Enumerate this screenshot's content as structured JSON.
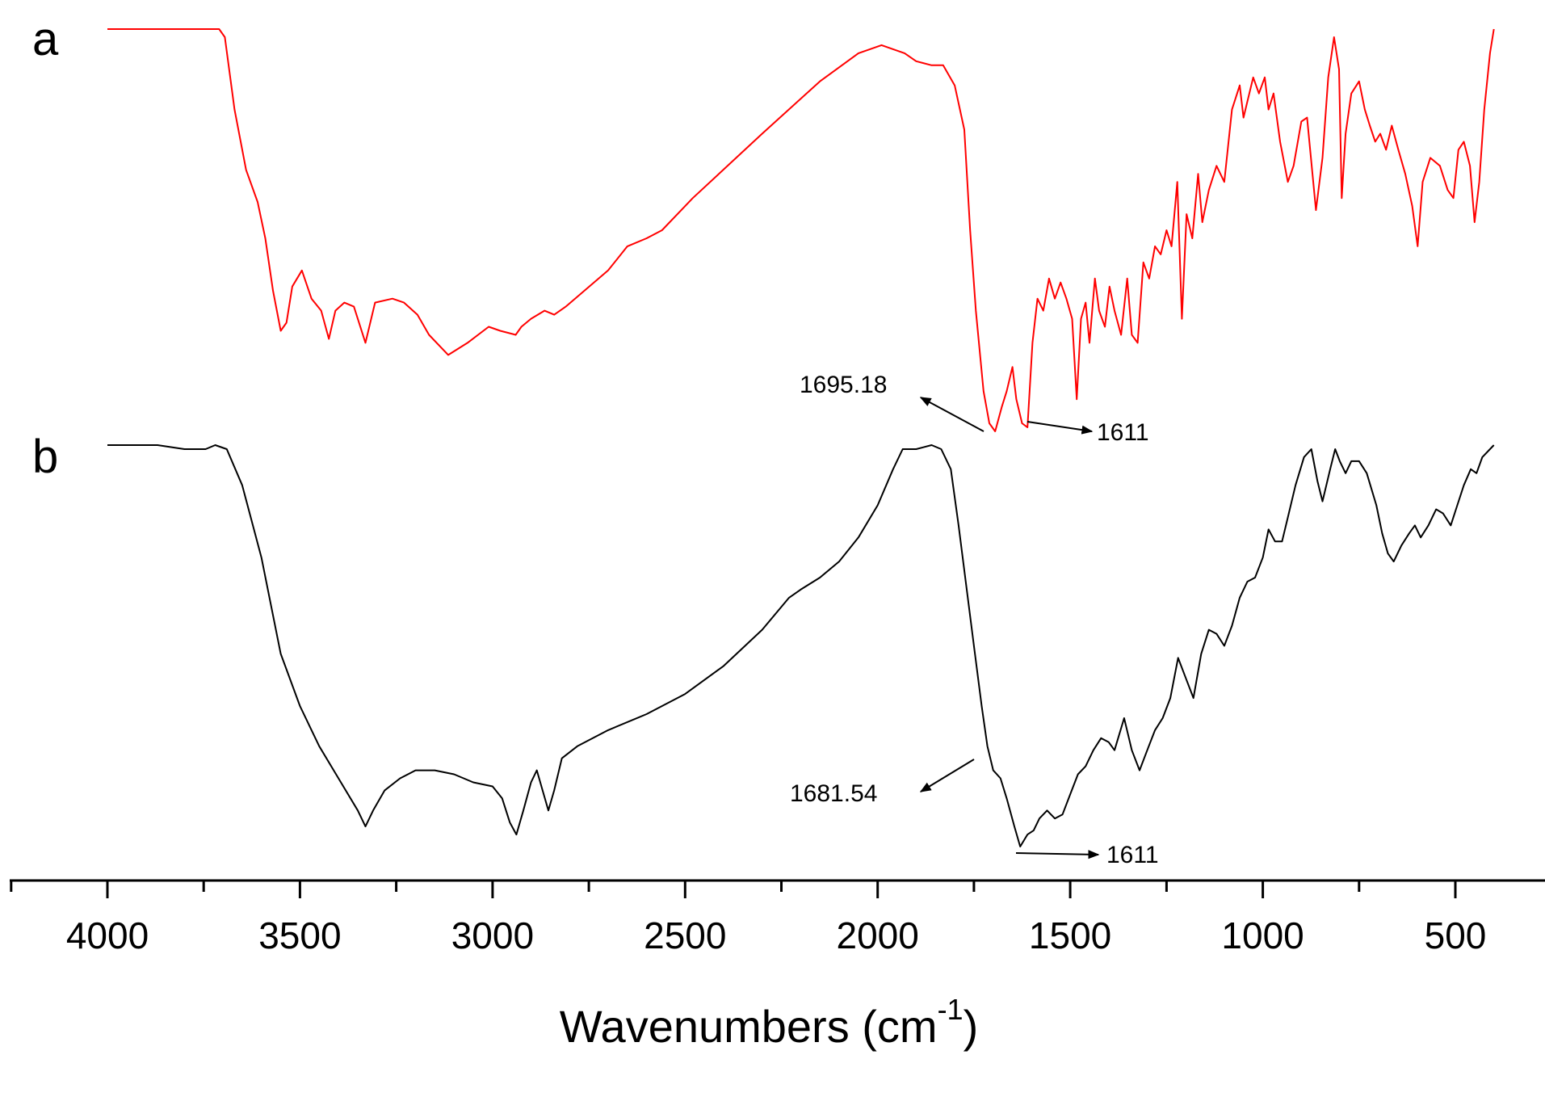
{
  "chart_data": {
    "type": "line",
    "xlabel": "Wavenumbers (cm",
    "xlabel_superscript": "-1",
    "xlabel_suffix": ")",
    "x_reversed": true,
    "xlim": [
      4250,
      250
    ],
    "ylim": [
      0,
      1
    ],
    "x_ticks": [
      4000,
      3500,
      3000,
      2500,
      2000,
      1500,
      1000,
      500
    ],
    "x_tick_labels": [
      "4000",
      "3500",
      "3000",
      "2500",
      "2000",
      "1500",
      "1000",
      "500"
    ],
    "grid": false,
    "series": [
      {
        "name": "a",
        "color": "#ff0000",
        "points": [
          [
            4000,
            1.0
          ],
          [
            3760,
            1.0
          ],
          [
            3710,
            1.0
          ],
          [
            3695,
            0.98
          ],
          [
            3670,
            0.8
          ],
          [
            3640,
            0.65
          ],
          [
            3610,
            0.57
          ],
          [
            3590,
            0.48
          ],
          [
            3570,
            0.35
          ],
          [
            3550,
            0.25
          ],
          [
            3535,
            0.27
          ],
          [
            3520,
            0.36
          ],
          [
            3495,
            0.4
          ],
          [
            3470,
            0.33
          ],
          [
            3445,
            0.3
          ],
          [
            3425,
            0.23
          ],
          [
            3408,
            0.3
          ],
          [
            3385,
            0.32
          ],
          [
            3360,
            0.31
          ],
          [
            3330,
            0.22
          ],
          [
            3305,
            0.32
          ],
          [
            3260,
            0.33
          ],
          [
            3230,
            0.32
          ],
          [
            3195,
            0.29
          ],
          [
            3165,
            0.24
          ],
          [
            3115,
            0.19
          ],
          [
            3065,
            0.22
          ],
          [
            3010,
            0.26
          ],
          [
            2980,
            0.25
          ],
          [
            2940,
            0.24
          ],
          [
            2925,
            0.26
          ],
          [
            2900,
            0.28
          ],
          [
            2865,
            0.3
          ],
          [
            2840,
            0.29
          ],
          [
            2810,
            0.31
          ],
          [
            2700,
            0.4
          ],
          [
            2650,
            0.46
          ],
          [
            2600,
            0.48
          ],
          [
            2560,
            0.5
          ],
          [
            2480,
            0.58
          ],
          [
            2300,
            0.74
          ],
          [
            2150,
            0.87
          ],
          [
            2050,
            0.94
          ],
          [
            1990,
            0.96
          ],
          [
            1930,
            0.94
          ],
          [
            1900,
            0.92
          ],
          [
            1860,
            0.91
          ],
          [
            1830,
            0.91
          ],
          [
            1800,
            0.86
          ],
          [
            1775,
            0.75
          ],
          [
            1760,
            0.5
          ],
          [
            1745,
            0.3
          ],
          [
            1725,
            0.1
          ],
          [
            1710,
            0.02
          ],
          [
            1695,
            0.0
          ],
          [
            1678,
            0.06
          ],
          [
            1665,
            0.1
          ],
          [
            1650,
            0.16
          ],
          [
            1640,
            0.08
          ],
          [
            1625,
            0.02
          ],
          [
            1611,
            0.01
          ],
          [
            1598,
            0.22
          ],
          [
            1585,
            0.33
          ],
          [
            1570,
            0.3
          ],
          [
            1555,
            0.38
          ],
          [
            1540,
            0.33
          ],
          [
            1525,
            0.37
          ],
          [
            1510,
            0.33
          ],
          [
            1495,
            0.28
          ],
          [
            1483,
            0.08
          ],
          [
            1472,
            0.28
          ],
          [
            1460,
            0.32
          ],
          [
            1450,
            0.22
          ],
          [
            1436,
            0.38
          ],
          [
            1425,
            0.3
          ],
          [
            1410,
            0.26
          ],
          [
            1398,
            0.36
          ],
          [
            1385,
            0.3
          ],
          [
            1368,
            0.24
          ],
          [
            1352,
            0.38
          ],
          [
            1340,
            0.24
          ],
          [
            1325,
            0.22
          ],
          [
            1310,
            0.42
          ],
          [
            1295,
            0.38
          ],
          [
            1280,
            0.46
          ],
          [
            1265,
            0.44
          ],
          [
            1250,
            0.5
          ],
          [
            1237,
            0.46
          ],
          [
            1222,
            0.62
          ],
          [
            1210,
            0.28
          ],
          [
            1198,
            0.54
          ],
          [
            1183,
            0.48
          ],
          [
            1168,
            0.64
          ],
          [
            1157,
            0.52
          ],
          [
            1140,
            0.6
          ],
          [
            1120,
            0.66
          ],
          [
            1100,
            0.62
          ],
          [
            1080,
            0.8
          ],
          [
            1060,
            0.86
          ],
          [
            1050,
            0.78
          ],
          [
            1040,
            0.82
          ],
          [
            1025,
            0.88
          ],
          [
            1010,
            0.84
          ],
          [
            995,
            0.88
          ],
          [
            985,
            0.8
          ],
          [
            972,
            0.84
          ],
          [
            955,
            0.72
          ],
          [
            935,
            0.62
          ],
          [
            920,
            0.66
          ],
          [
            900,
            0.77
          ],
          [
            885,
            0.78
          ],
          [
            862,
            0.55
          ],
          [
            845,
            0.68
          ],
          [
            830,
            0.88
          ],
          [
            815,
            0.98
          ],
          [
            802,
            0.9
          ],
          [
            795,
            0.58
          ],
          [
            785,
            0.74
          ],
          [
            770,
            0.84
          ],
          [
            750,
            0.87
          ],
          [
            735,
            0.8
          ],
          [
            722,
            0.76
          ],
          [
            708,
            0.72
          ],
          [
            695,
            0.74
          ],
          [
            680,
            0.7
          ],
          [
            665,
            0.76
          ],
          [
            648,
            0.7
          ],
          [
            630,
            0.64
          ],
          [
            612,
            0.56
          ],
          [
            598,
            0.46
          ],
          [
            585,
            0.62
          ],
          [
            565,
            0.68
          ],
          [
            540,
            0.66
          ],
          [
            520,
            0.6
          ],
          [
            505,
            0.58
          ],
          [
            492,
            0.7
          ],
          [
            478,
            0.72
          ],
          [
            462,
            0.66
          ],
          [
            450,
            0.52
          ],
          [
            438,
            0.62
          ],
          [
            425,
            0.8
          ],
          [
            410,
            0.94
          ],
          [
            400,
            1.0
          ]
        ]
      },
      {
        "name": "b",
        "color": "#000000",
        "points": [
          [
            4000,
            1.0
          ],
          [
            3870,
            1.0
          ],
          [
            3800,
            0.99
          ],
          [
            3745,
            0.99
          ],
          [
            3720,
            1.0
          ],
          [
            3690,
            0.99
          ],
          [
            3650,
            0.9
          ],
          [
            3600,
            0.72
          ],
          [
            3550,
            0.48
          ],
          [
            3500,
            0.35
          ],
          [
            3450,
            0.25
          ],
          [
            3400,
            0.17
          ],
          [
            3350,
            0.09
          ],
          [
            3330,
            0.05
          ],
          [
            3310,
            0.09
          ],
          [
            3280,
            0.14
          ],
          [
            3240,
            0.17
          ],
          [
            3200,
            0.19
          ],
          [
            3150,
            0.19
          ],
          [
            3100,
            0.18
          ],
          [
            3050,
            0.16
          ],
          [
            3000,
            0.15
          ],
          [
            2975,
            0.12
          ],
          [
            2955,
            0.06
          ],
          [
            2938,
            0.03
          ],
          [
            2920,
            0.09
          ],
          [
            2900,
            0.16
          ],
          [
            2885,
            0.19
          ],
          [
            2870,
            0.14
          ],
          [
            2855,
            0.09
          ],
          [
            2840,
            0.14
          ],
          [
            2820,
            0.22
          ],
          [
            2780,
            0.25
          ],
          [
            2700,
            0.29
          ],
          [
            2600,
            0.33
          ],
          [
            2500,
            0.38
          ],
          [
            2400,
            0.45
          ],
          [
            2300,
            0.54
          ],
          [
            2230,
            0.62
          ],
          [
            2200,
            0.64
          ],
          [
            2150,
            0.67
          ],
          [
            2100,
            0.71
          ],
          [
            2050,
            0.77
          ],
          [
            2000,
            0.85
          ],
          [
            1960,
            0.94
          ],
          [
            1935,
            0.99
          ],
          [
            1900,
            0.99
          ],
          [
            1860,
            1.0
          ],
          [
            1835,
            0.99
          ],
          [
            1810,
            0.94
          ],
          [
            1790,
            0.8
          ],
          [
            1770,
            0.65
          ],
          [
            1750,
            0.5
          ],
          [
            1730,
            0.35
          ],
          [
            1715,
            0.25
          ],
          [
            1700,
            0.19
          ],
          [
            1681,
            0.17
          ],
          [
            1665,
            0.12
          ],
          [
            1645,
            0.05
          ],
          [
            1630,
            0.0
          ],
          [
            1611,
            0.03
          ],
          [
            1595,
            0.04
          ],
          [
            1580,
            0.07
          ],
          [
            1560,
            0.09
          ],
          [
            1540,
            0.07
          ],
          [
            1520,
            0.08
          ],
          [
            1500,
            0.13
          ],
          [
            1480,
            0.18
          ],
          [
            1460,
            0.2
          ],
          [
            1440,
            0.24
          ],
          [
            1420,
            0.27
          ],
          [
            1400,
            0.26
          ],
          [
            1385,
            0.24
          ],
          [
            1360,
            0.32
          ],
          [
            1340,
            0.24
          ],
          [
            1320,
            0.19
          ],
          [
            1300,
            0.24
          ],
          [
            1280,
            0.29
          ],
          [
            1260,
            0.32
          ],
          [
            1240,
            0.37
          ],
          [
            1220,
            0.47
          ],
          [
            1200,
            0.42
          ],
          [
            1180,
            0.37
          ],
          [
            1160,
            0.48
          ],
          [
            1140,
            0.54
          ],
          [
            1120,
            0.53
          ],
          [
            1100,
            0.5
          ],
          [
            1080,
            0.55
          ],
          [
            1060,
            0.62
          ],
          [
            1040,
            0.66
          ],
          [
            1020,
            0.67
          ],
          [
            1000,
            0.72
          ],
          [
            985,
            0.79
          ],
          [
            968,
            0.76
          ],
          [
            950,
            0.76
          ],
          [
            935,
            0.82
          ],
          [
            915,
            0.9
          ],
          [
            893,
            0.97
          ],
          [
            874,
            0.99
          ],
          [
            858,
            0.91
          ],
          [
            845,
            0.86
          ],
          [
            825,
            0.94
          ],
          [
            812,
            0.99
          ],
          [
            800,
            0.96
          ],
          [
            785,
            0.93
          ],
          [
            770,
            0.96
          ],
          [
            750,
            0.96
          ],
          [
            730,
            0.93
          ],
          [
            705,
            0.85
          ],
          [
            690,
            0.78
          ],
          [
            675,
            0.73
          ],
          [
            660,
            0.71
          ],
          [
            640,
            0.75
          ],
          [
            620,
            0.78
          ],
          [
            605,
            0.8
          ],
          [
            590,
            0.77
          ],
          [
            570,
            0.8
          ],
          [
            550,
            0.84
          ],
          [
            532,
            0.83
          ],
          [
            512,
            0.8
          ],
          [
            495,
            0.85
          ],
          [
            478,
            0.9
          ],
          [
            460,
            0.94
          ],
          [
            445,
            0.93
          ],
          [
            430,
            0.97
          ],
          [
            410,
            0.99
          ],
          [
            400,
            1.0
          ]
        ]
      }
    ],
    "annotations": [
      {
        "text": "1695.18",
        "series": "a",
        "x": 1695
      },
      {
        "text": "1611",
        "series": "a",
        "x": 1611
      },
      {
        "text": "1681.54",
        "series": "b",
        "x": 1681
      },
      {
        "text": "1611",
        "series": "b",
        "x": 1611
      }
    ]
  }
}
